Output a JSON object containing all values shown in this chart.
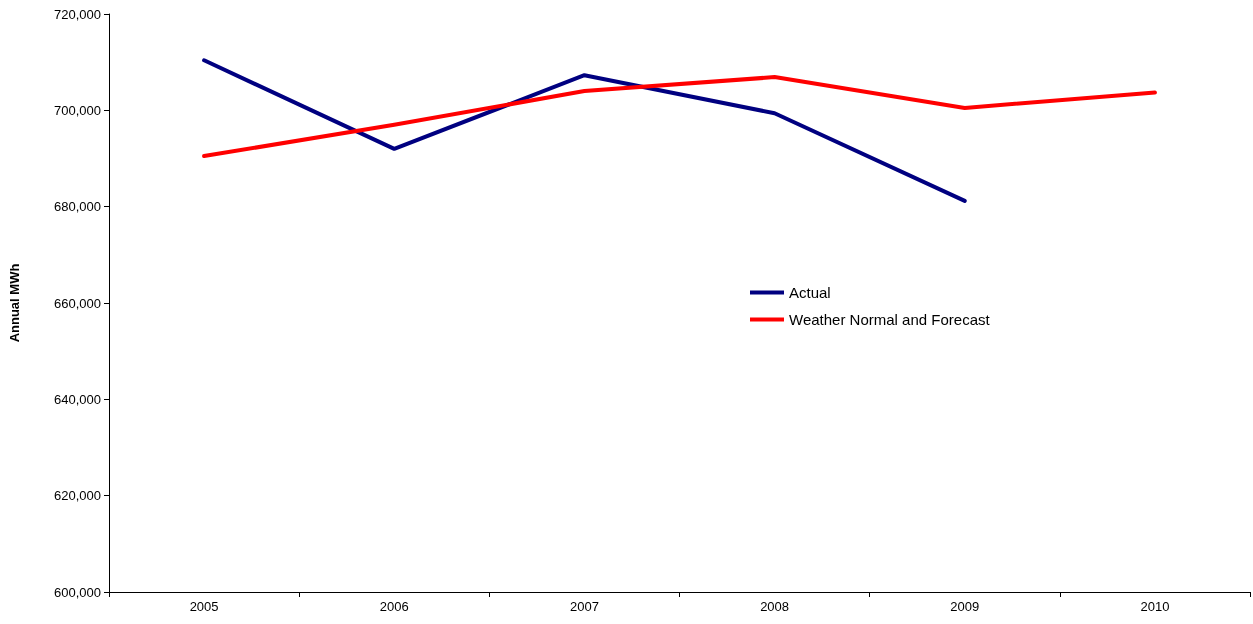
{
  "chart_data": {
    "type": "line",
    "ylabel": "Annual MWh",
    "categories": [
      "2005",
      "2006",
      "2007",
      "2008",
      "2009",
      "2010"
    ],
    "series": [
      {
        "name": "Actual",
        "color": "#000080",
        "values": [
          710400,
          692000,
          707300,
          699400,
          681200,
          null
        ]
      },
      {
        "name": "Weather Normal and Forecast",
        "color": "#ff0000",
        "values": [
          690500,
          697000,
          704000,
          706900,
          700500,
          703700
        ]
      }
    ],
    "ylim": [
      600000,
      720000
    ],
    "yticks": [
      {
        "value": 600000,
        "label": "600,000"
      },
      {
        "value": 620000,
        "label": "620,000"
      },
      {
        "value": 640000,
        "label": "640,000"
      },
      {
        "value": 660000,
        "label": "660,000"
      },
      {
        "value": 680000,
        "label": "680,000"
      },
      {
        "value": 700000,
        "label": "700,000"
      },
      {
        "value": 720000,
        "label": "720,000"
      }
    ],
    "grid": false,
    "legend": "center",
    "marker": "none",
    "line_style": "solid"
  }
}
